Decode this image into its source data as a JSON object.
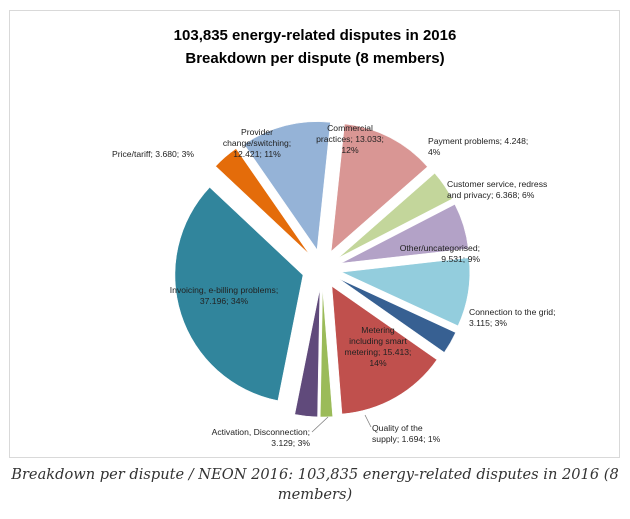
{
  "chart_data": {
    "type": "pie",
    "title": "103,835 energy-related disputes in 2016",
    "subtitle": "Breakdown per dispute (8 members)",
    "slices": [
      {
        "id": "commercial",
        "name": "Commercial practices",
        "value": 13033,
        "percent": 12,
        "color": "#d99694",
        "label_lines": [
          "Commercial",
          "practices; 13.033;",
          "12%"
        ]
      },
      {
        "id": "payment",
        "name": "Payment problems",
        "value": 4248,
        "percent": 4,
        "color": "#c3d69b",
        "label_lines": [
          "Payment problems; 4.248;",
          "4%"
        ]
      },
      {
        "id": "customer-service",
        "name": "Customer service, redress and privacy",
        "value": 6368,
        "percent": 6,
        "color": "#b3a2c7",
        "label_lines": [
          "Customer service, redress",
          "and privacy; 6.368; 6%"
        ]
      },
      {
        "id": "other",
        "name": "Other/uncategorised",
        "value": 9531,
        "percent": 9,
        "color": "#93cddd",
        "label_lines": [
          "Other/uncategorised;",
          "9.531; 9%"
        ]
      },
      {
        "id": "connection",
        "name": "Connection to the grid",
        "value": 3115,
        "percent": 3,
        "color": "#376092",
        "label_lines": [
          "Connection to the grid;",
          "3.115; 3%"
        ]
      },
      {
        "id": "metering",
        "name": "Metering including smart metering",
        "value": 15413,
        "percent": 14,
        "color": "#c0504d",
        "label_lines": [
          "Metering",
          "including smart",
          "metering; 15.413;",
          "14%"
        ]
      },
      {
        "id": "quality",
        "name": "Quality of the supply",
        "value": 1694,
        "percent": 1,
        "color": "#9bbb59",
        "label_lines": [
          "Quality of the",
          "supply; 1.694; 1%"
        ]
      },
      {
        "id": "activation",
        "name": "Activation, Disconnection",
        "value": 3129,
        "percent": 3,
        "color": "#604a7b",
        "label_lines": [
          "Activation, Disconnection;",
          "3.129; 3%"
        ]
      },
      {
        "id": "invoicing",
        "name": "Invoicing, e-billing problems",
        "value": 37196,
        "percent": 34,
        "color": "#31859c",
        "label_lines": [
          "Invoicing, e-billing problems;",
          "37.196; 34%"
        ]
      },
      {
        "id": "price",
        "name": "Price/tariff",
        "value": 3680,
        "percent": 3,
        "color": "#e46c0a",
        "label_lines": [
          "Price/tariff; 3.680; 3%"
        ]
      },
      {
        "id": "provider",
        "name": "Provider change/switching",
        "value": 12421,
        "percent": 11,
        "color": "#95b3d7",
        "label_lines": [
          "Provider",
          "change/switching;",
          "12.421; 11%"
        ]
      }
    ]
  },
  "caption": "Breakdown per dispute / NEON 2016: 103,835 energy-related disputes in 2016 (8 members)"
}
